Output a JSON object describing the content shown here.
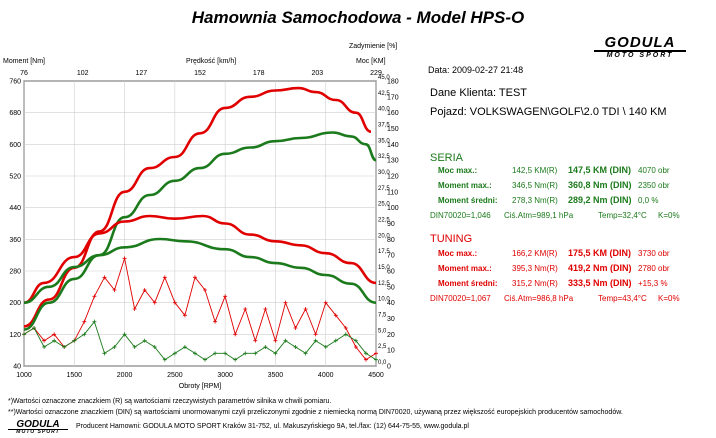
{
  "title": "Hamownia Samochodowa   -   Model HPS-O",
  "logo": {
    "main": "GODULA",
    "sub": "MOTO SPORT"
  },
  "info": {
    "date": "Data: 2009-02-27  21:48",
    "client": "Dane Klienta: TEST",
    "vehicle": "Pojazd: VOLKSWAGEN\\GOLF\\2.0 TDI \\ 140 KM"
  },
  "seria": {
    "heading": "SERIA",
    "rows": [
      {
        "label": "Moc max.:",
        "v1": "142,5 KM(R)",
        "v2": "147,5 KM (DIN)",
        "v3": "4070 obr"
      },
      {
        "label": "Moment max.:",
        "v1": "346,5 Nm(R)",
        "v2": "360,8 Nm (DIN)",
        "v3": "2350 obr"
      },
      {
        "label": "Moment średni:",
        "v1": "278,3 Nm(R)",
        "v2": "289,2 Nm (DIN)",
        "v3": "0,0 %"
      }
    ],
    "din": "DIN70020=1,046",
    "atm": "Ciś.Atm=989,1 hPa",
    "temp": "Temp=32,4°C",
    "k": "K=0%"
  },
  "tuning": {
    "heading": "TUNING",
    "rows": [
      {
        "label": "Moc max.:",
        "v1": "166,2 KM(R)",
        "v2": "175,5 KM (DIN)",
        "v3": "3730 obr"
      },
      {
        "label": "Moment max.:",
        "v1": "395,3 Nm(R)",
        "v2": "419,2 Nm (DIN)",
        "v3": "2780 obr"
      },
      {
        "label": "Moment średni:",
        "v1": "315,2 Nm(R)",
        "v2": "333,5 Nm (DIN)",
        "v3": "+15,3 %"
      }
    ],
    "din": "DIN70020=1,067",
    "atm": "Ciś.Atm=986,8 hPa",
    "temp": "Temp=43,4°C",
    "k": "K=0%"
  },
  "footnotes": {
    "n1": "*)Wartości oznaczone znaczkiem (R) są wartościami rzeczywistych parametrów silnika w chwili pomiaru.",
    "n2": "**)Wartości oznaczone znaczkiem (DIN) są wartościami unormowanymi czyli przeliczonymi zgodnie z niemiecką normą DIN70020, używaną przez większość europejskich producentów samochodów.",
    "producer": "Producent Hamowni: GODULA MOTO SPORT Kraków 31-752, ul. Makuszyńskiego 9A, tel./fax: (12) 644-75-55, www.godula.pl"
  },
  "colors": {
    "seria": "#1b7a1b",
    "tuning": "#e00000"
  },
  "chart_data": {
    "type": "line",
    "xlabel": "Obroty [RPM]",
    "xlim": [
      1000,
      4500
    ],
    "xticks": [
      1000,
      1500,
      2000,
      2500,
      3000,
      3500,
      4000,
      4500
    ],
    "axes": {
      "moment": {
        "label": "Moment [Nm]",
        "lim": [
          40,
          760
        ],
        "ticks": [
          40,
          120,
          200,
          280,
          360,
          440,
          520,
          600,
          680,
          760
        ]
      },
      "predkosc": {
        "label": "Prędkość [km/h]",
        "lim": [
          76,
          229
        ],
        "ticks": [
          76,
          102,
          127,
          152,
          178,
          203,
          229
        ]
      },
      "moc": {
        "label": "Moc [KM]",
        "lim": [
          0,
          180
        ],
        "ticks": [
          0,
          10,
          20,
          30,
          40,
          50,
          60,
          70,
          80,
          90,
          100,
          110,
          120,
          130,
          140,
          150,
          160,
          170,
          180
        ]
      },
      "zadymienie": {
        "label": "Zadymienie [%]",
        "lim": [
          0,
          45
        ],
        "ticks": [
          "0,0",
          "2,5",
          "5,0",
          "7,5",
          "10,0",
          "12,5",
          "15,0",
          "17,5",
          "20,0",
          "22,5",
          "25,0",
          "27,5",
          "30,0",
          "32,5",
          "35,0",
          "37,5",
          "40,0",
          "42,5",
          "45,0"
        ]
      }
    },
    "series": [
      {
        "name": "TUNING",
        "axis": "moc",
        "x": [
          1000,
          1250,
          1500,
          1750,
          2000,
          2250,
          2500,
          2750,
          3000,
          3250,
          3500,
          3730,
          3900,
          4100,
          4300,
          4450
        ],
        "y": [
          25,
          42,
          62,
          85,
          110,
          125,
          132,
          147,
          163,
          170,
          174,
          175.5,
          173,
          168,
          160,
          148
        ]
      },
      {
        "name": "SERIA",
        "axis": "moc",
        "x": [
          1000,
          1250,
          1500,
          1750,
          2000,
          2250,
          2500,
          2750,
          3000,
          3250,
          3500,
          3750,
          4070,
          4250,
          4400,
          4500
        ],
        "y": [
          23,
          40,
          55,
          70,
          94,
          108,
          117,
          125,
          134,
          138,
          142,
          144,
          147.5,
          145,
          140,
          130
        ]
      },
      {
        "name": "TUNING",
        "axis": "moment",
        "x": [
          1000,
          1200,
          1500,
          1750,
          2000,
          2250,
          2500,
          2780,
          3000,
          3250,
          3500,
          3750,
          4000,
          4250,
          4500
        ],
        "y": [
          200,
          250,
          315,
          375,
          405,
          419,
          412,
          419,
          400,
          372,
          355,
          345,
          325,
          300,
          250
        ]
      },
      {
        "name": "SERIA",
        "axis": "moment",
        "x": [
          1000,
          1250,
          1500,
          1750,
          2000,
          2350,
          2600,
          3000,
          3250,
          3500,
          3750,
          4000,
          4250,
          4500
        ],
        "y": [
          200,
          240,
          290,
          320,
          340,
          360.8,
          355,
          335,
          315,
          300,
          288,
          270,
          248,
          200
        ]
      },
      {
        "name": "TUNING",
        "axis": "zadymienie",
        "markers": "+",
        "x": [
          1000,
          1100,
          1200,
          1300,
          1400,
          1500,
          1600,
          1700,
          1800,
          1900,
          2000,
          2100,
          2200,
          2300,
          2400,
          2500,
          2600,
          2700,
          2800,
          2900,
          3000,
          3100,
          3200,
          3300,
          3400,
          3500,
          3600,
          3700,
          3800,
          3900,
          4000,
          4100,
          4200,
          4300,
          4400,
          4500
        ],
        "y": [
          5,
          6,
          4,
          5,
          3,
          4,
          7,
          11,
          14,
          12,
          17,
          9,
          12,
          10,
          14,
          10,
          8,
          14,
          12,
          7,
          11,
          5,
          9,
          4,
          9,
          4,
          10,
          6,
          9,
          5,
          10,
          8,
          6,
          3,
          1,
          2
        ]
      },
      {
        "name": "SERIA",
        "axis": "zadymienie",
        "markers": "+",
        "x": [
          1000,
          1100,
          1200,
          1300,
          1400,
          1500,
          1600,
          1700,
          1800,
          1900,
          2000,
          2100,
          2200,
          2300,
          2400,
          2500,
          2600,
          2700,
          2800,
          2900,
          3000,
          3100,
          3200,
          3300,
          3400,
          3500,
          3600,
          3700,
          3800,
          3900,
          4000,
          4100,
          4200,
          4300,
          4400,
          4500
        ],
        "y": [
          5,
          6,
          3,
          4,
          3,
          4,
          5,
          7,
          2,
          3,
          5,
          3,
          4,
          3,
          1,
          2,
          3,
          2,
          1,
          2,
          2,
          1,
          2,
          2,
          3,
          2,
          4,
          3,
          2,
          4,
          3,
          4,
          5,
          4,
          2,
          1
        ]
      }
    ]
  }
}
